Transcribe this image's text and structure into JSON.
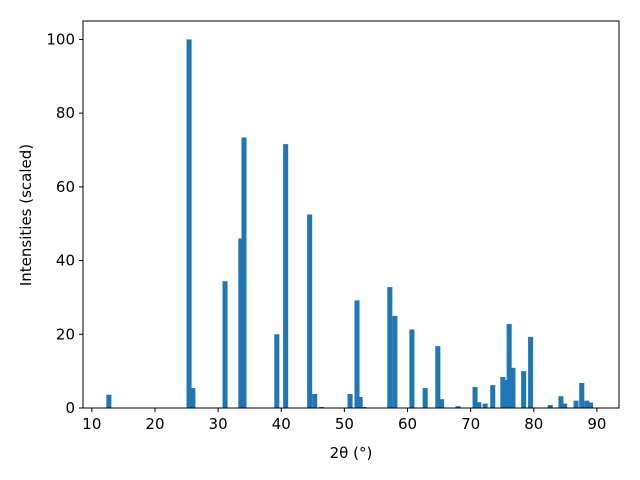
{
  "chart_data": {
    "type": "bar",
    "xlabel": "2θ (°)",
    "ylabel": "Intensities (scaled)",
    "x": [
      12.7,
      25.4,
      26.0,
      31.1,
      33.6,
      34.1,
      39.3,
      40.7,
      44.5,
      45.3,
      46.4,
      50.9,
      52.0,
      52.5,
      53.1,
      57.2,
      58.0,
      60.7,
      62.8,
      64.8,
      65.4,
      68.0,
      70.7,
      71.3,
      72.3,
      73.5,
      75.1,
      75.6,
      76.1,
      76.7,
      78.4,
      79.5,
      82.6,
      84.3,
      84.9,
      86.7,
      87.6,
      88.4,
      89.0
    ],
    "values": [
      3.6,
      100,
      5.4,
      34.4,
      46,
      73.4,
      20,
      71.6,
      52.5,
      3.8,
      0.3,
      3.8,
      29.2,
      3,
      0.3,
      32.8,
      25,
      21.3,
      5.4,
      16.8,
      2.4,
      0.5,
      5.7,
      1.6,
      1.2,
      6.2,
      8.4,
      7.6,
      22.8,
      10.9,
      10,
      19.3,
      0.8,
      3.2,
      1.2,
      2,
      6.8,
      2,
      1.5
    ],
    "color": "#1f77b4",
    "xlim": [
      8.6,
      93.5
    ],
    "xticks": [
      10,
      20,
      30,
      40,
      50,
      60,
      70,
      80,
      90
    ],
    "ylim": [
      0,
      105
    ],
    "yticks": [
      0,
      20,
      40,
      60,
      80,
      100
    ],
    "grid": false
  }
}
